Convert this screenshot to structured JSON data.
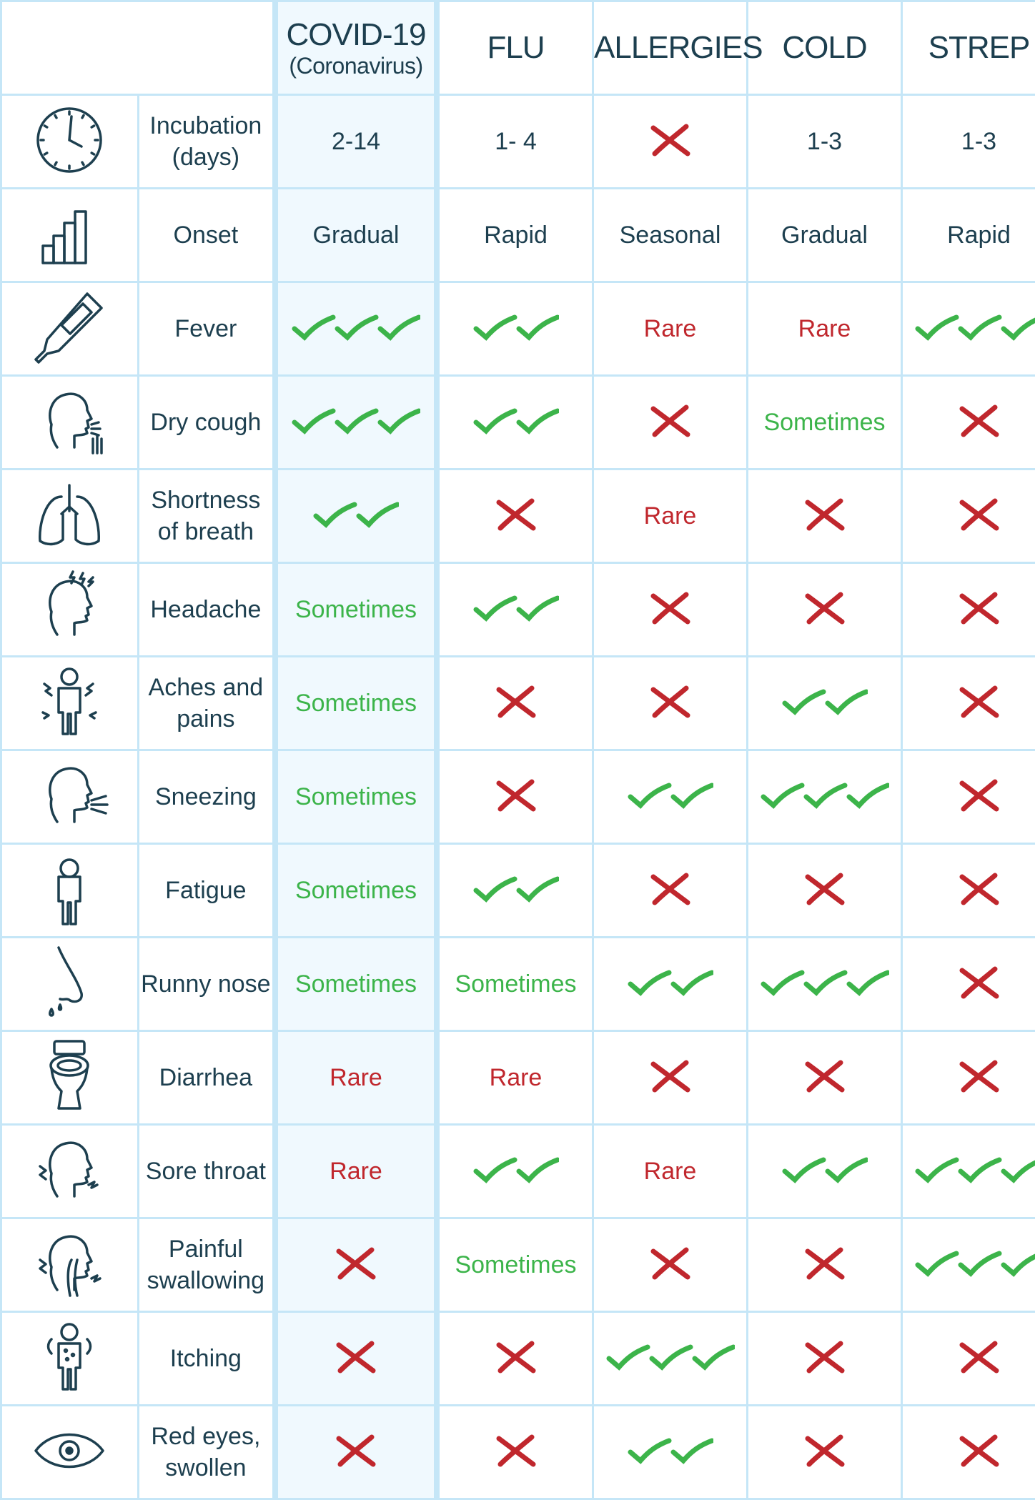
{
  "header": {
    "columns": [
      {
        "title": "COVID-19",
        "subtitle": "(Coronavirus)"
      },
      {
        "title": "FLU"
      },
      {
        "title": "ALLERGIES"
      },
      {
        "title": "COLD"
      },
      {
        "title": "STREP"
      }
    ]
  },
  "colors": {
    "text": "#1d3f4f",
    "border": "#c5e6f7",
    "highlight": "#f0f9fe",
    "green": "#3cb44a",
    "red": "#c0272d"
  },
  "rows": [
    {
      "label": "Incubation (days)",
      "icon": "clock-icon",
      "cells": [
        {
          "t": "text",
          "v": "2-14"
        },
        {
          "t": "text",
          "v": "1- 4"
        },
        {
          "t": "x"
        },
        {
          "t": "text",
          "v": "1-3"
        },
        {
          "t": "text",
          "v": "1-3"
        }
      ]
    },
    {
      "label": "Onset",
      "icon": "bar-chart-icon",
      "cells": [
        {
          "t": "text",
          "v": "Gradual"
        },
        {
          "t": "text",
          "v": "Rapid"
        },
        {
          "t": "text",
          "v": "Seasonal"
        },
        {
          "t": "text",
          "v": "Gradual"
        },
        {
          "t": "text",
          "v": "Rapid"
        }
      ]
    },
    {
      "label": "Fever",
      "icon": "thermometer-icon",
      "cells": [
        {
          "t": "check",
          "n": 3
        },
        {
          "t": "check",
          "n": 2
        },
        {
          "t": "text",
          "v": "Rare",
          "tone": "red"
        },
        {
          "t": "text",
          "v": "Rare",
          "tone": "red"
        },
        {
          "t": "check",
          "n": 3
        }
      ]
    },
    {
      "label": "Dry cough",
      "icon": "cough-icon",
      "cells": [
        {
          "t": "check",
          "n": 3
        },
        {
          "t": "check",
          "n": 2
        },
        {
          "t": "x"
        },
        {
          "t": "text",
          "v": "Sometimes",
          "tone": "green"
        },
        {
          "t": "x"
        }
      ]
    },
    {
      "label": "Shortness of breath",
      "icon": "lungs-icon",
      "cells": [
        {
          "t": "check",
          "n": 2
        },
        {
          "t": "x"
        },
        {
          "t": "text",
          "v": "Rare",
          "tone": "red"
        },
        {
          "t": "x"
        },
        {
          "t": "x"
        }
      ]
    },
    {
      "label": "Headache",
      "icon": "headache-icon",
      "cells": [
        {
          "t": "text",
          "v": "Sometimes",
          "tone": "green"
        },
        {
          "t": "check",
          "n": 2
        },
        {
          "t": "x"
        },
        {
          "t": "x"
        },
        {
          "t": "x"
        }
      ]
    },
    {
      "label": "Aches and pains",
      "icon": "body-aches-icon",
      "cells": [
        {
          "t": "text",
          "v": "Sometimes",
          "tone": "green"
        },
        {
          "t": "x"
        },
        {
          "t": "x"
        },
        {
          "t": "check",
          "n": 2
        },
        {
          "t": "x"
        }
      ]
    },
    {
      "label": "Sneezing",
      "icon": "sneeze-icon",
      "cells": [
        {
          "t": "text",
          "v": "Sometimes",
          "tone": "green"
        },
        {
          "t": "x"
        },
        {
          "t": "check",
          "n": 2
        },
        {
          "t": "check",
          "n": 3
        },
        {
          "t": "x"
        }
      ]
    },
    {
      "label": "Fatigue",
      "icon": "fatigue-icon",
      "cells": [
        {
          "t": "text",
          "v": "Sometimes",
          "tone": "green"
        },
        {
          "t": "check",
          "n": 2
        },
        {
          "t": "x"
        },
        {
          "t": "x"
        },
        {
          "t": "x"
        }
      ]
    },
    {
      "label": "Runny nose",
      "icon": "nose-icon",
      "cells": [
        {
          "t": "text",
          "v": "Sometimes",
          "tone": "green"
        },
        {
          "t": "text",
          "v": "Sometimes",
          "tone": "green"
        },
        {
          "t": "check",
          "n": 2
        },
        {
          "t": "check",
          "n": 3
        },
        {
          "t": "x"
        }
      ]
    },
    {
      "label": "Diarrhea",
      "icon": "toilet-icon",
      "cells": [
        {
          "t": "text",
          "v": "Rare",
          "tone": "red"
        },
        {
          "t": "text",
          "v": "Rare",
          "tone": "red"
        },
        {
          "t": "x"
        },
        {
          "t": "x"
        },
        {
          "t": "x"
        }
      ]
    },
    {
      "label": "Sore throat",
      "icon": "sore-throat-icon",
      "cells": [
        {
          "t": "text",
          "v": "Rare",
          "tone": "red"
        },
        {
          "t": "check",
          "n": 2
        },
        {
          "t": "text",
          "v": "Rare",
          "tone": "red"
        },
        {
          "t": "check",
          "n": 2
        },
        {
          "t": "check",
          "n": 3
        }
      ]
    },
    {
      "label": "Painful swallowing",
      "icon": "swallowing-icon",
      "cells": [
        {
          "t": "x"
        },
        {
          "t": "text",
          "v": "Sometimes",
          "tone": "green"
        },
        {
          "t": "x"
        },
        {
          "t": "x"
        },
        {
          "t": "check",
          "n": 3
        }
      ]
    },
    {
      "label": "Itching",
      "icon": "itching-icon",
      "cells": [
        {
          "t": "x"
        },
        {
          "t": "x"
        },
        {
          "t": "check",
          "n": 3
        },
        {
          "t": "x"
        },
        {
          "t": "x"
        }
      ]
    },
    {
      "label": "Red eyes, swollen",
      "icon": "eye-icon",
      "cells": [
        {
          "t": "x"
        },
        {
          "t": "x"
        },
        {
          "t": "check",
          "n": 2
        },
        {
          "t": "x"
        },
        {
          "t": "x"
        }
      ]
    }
  ]
}
